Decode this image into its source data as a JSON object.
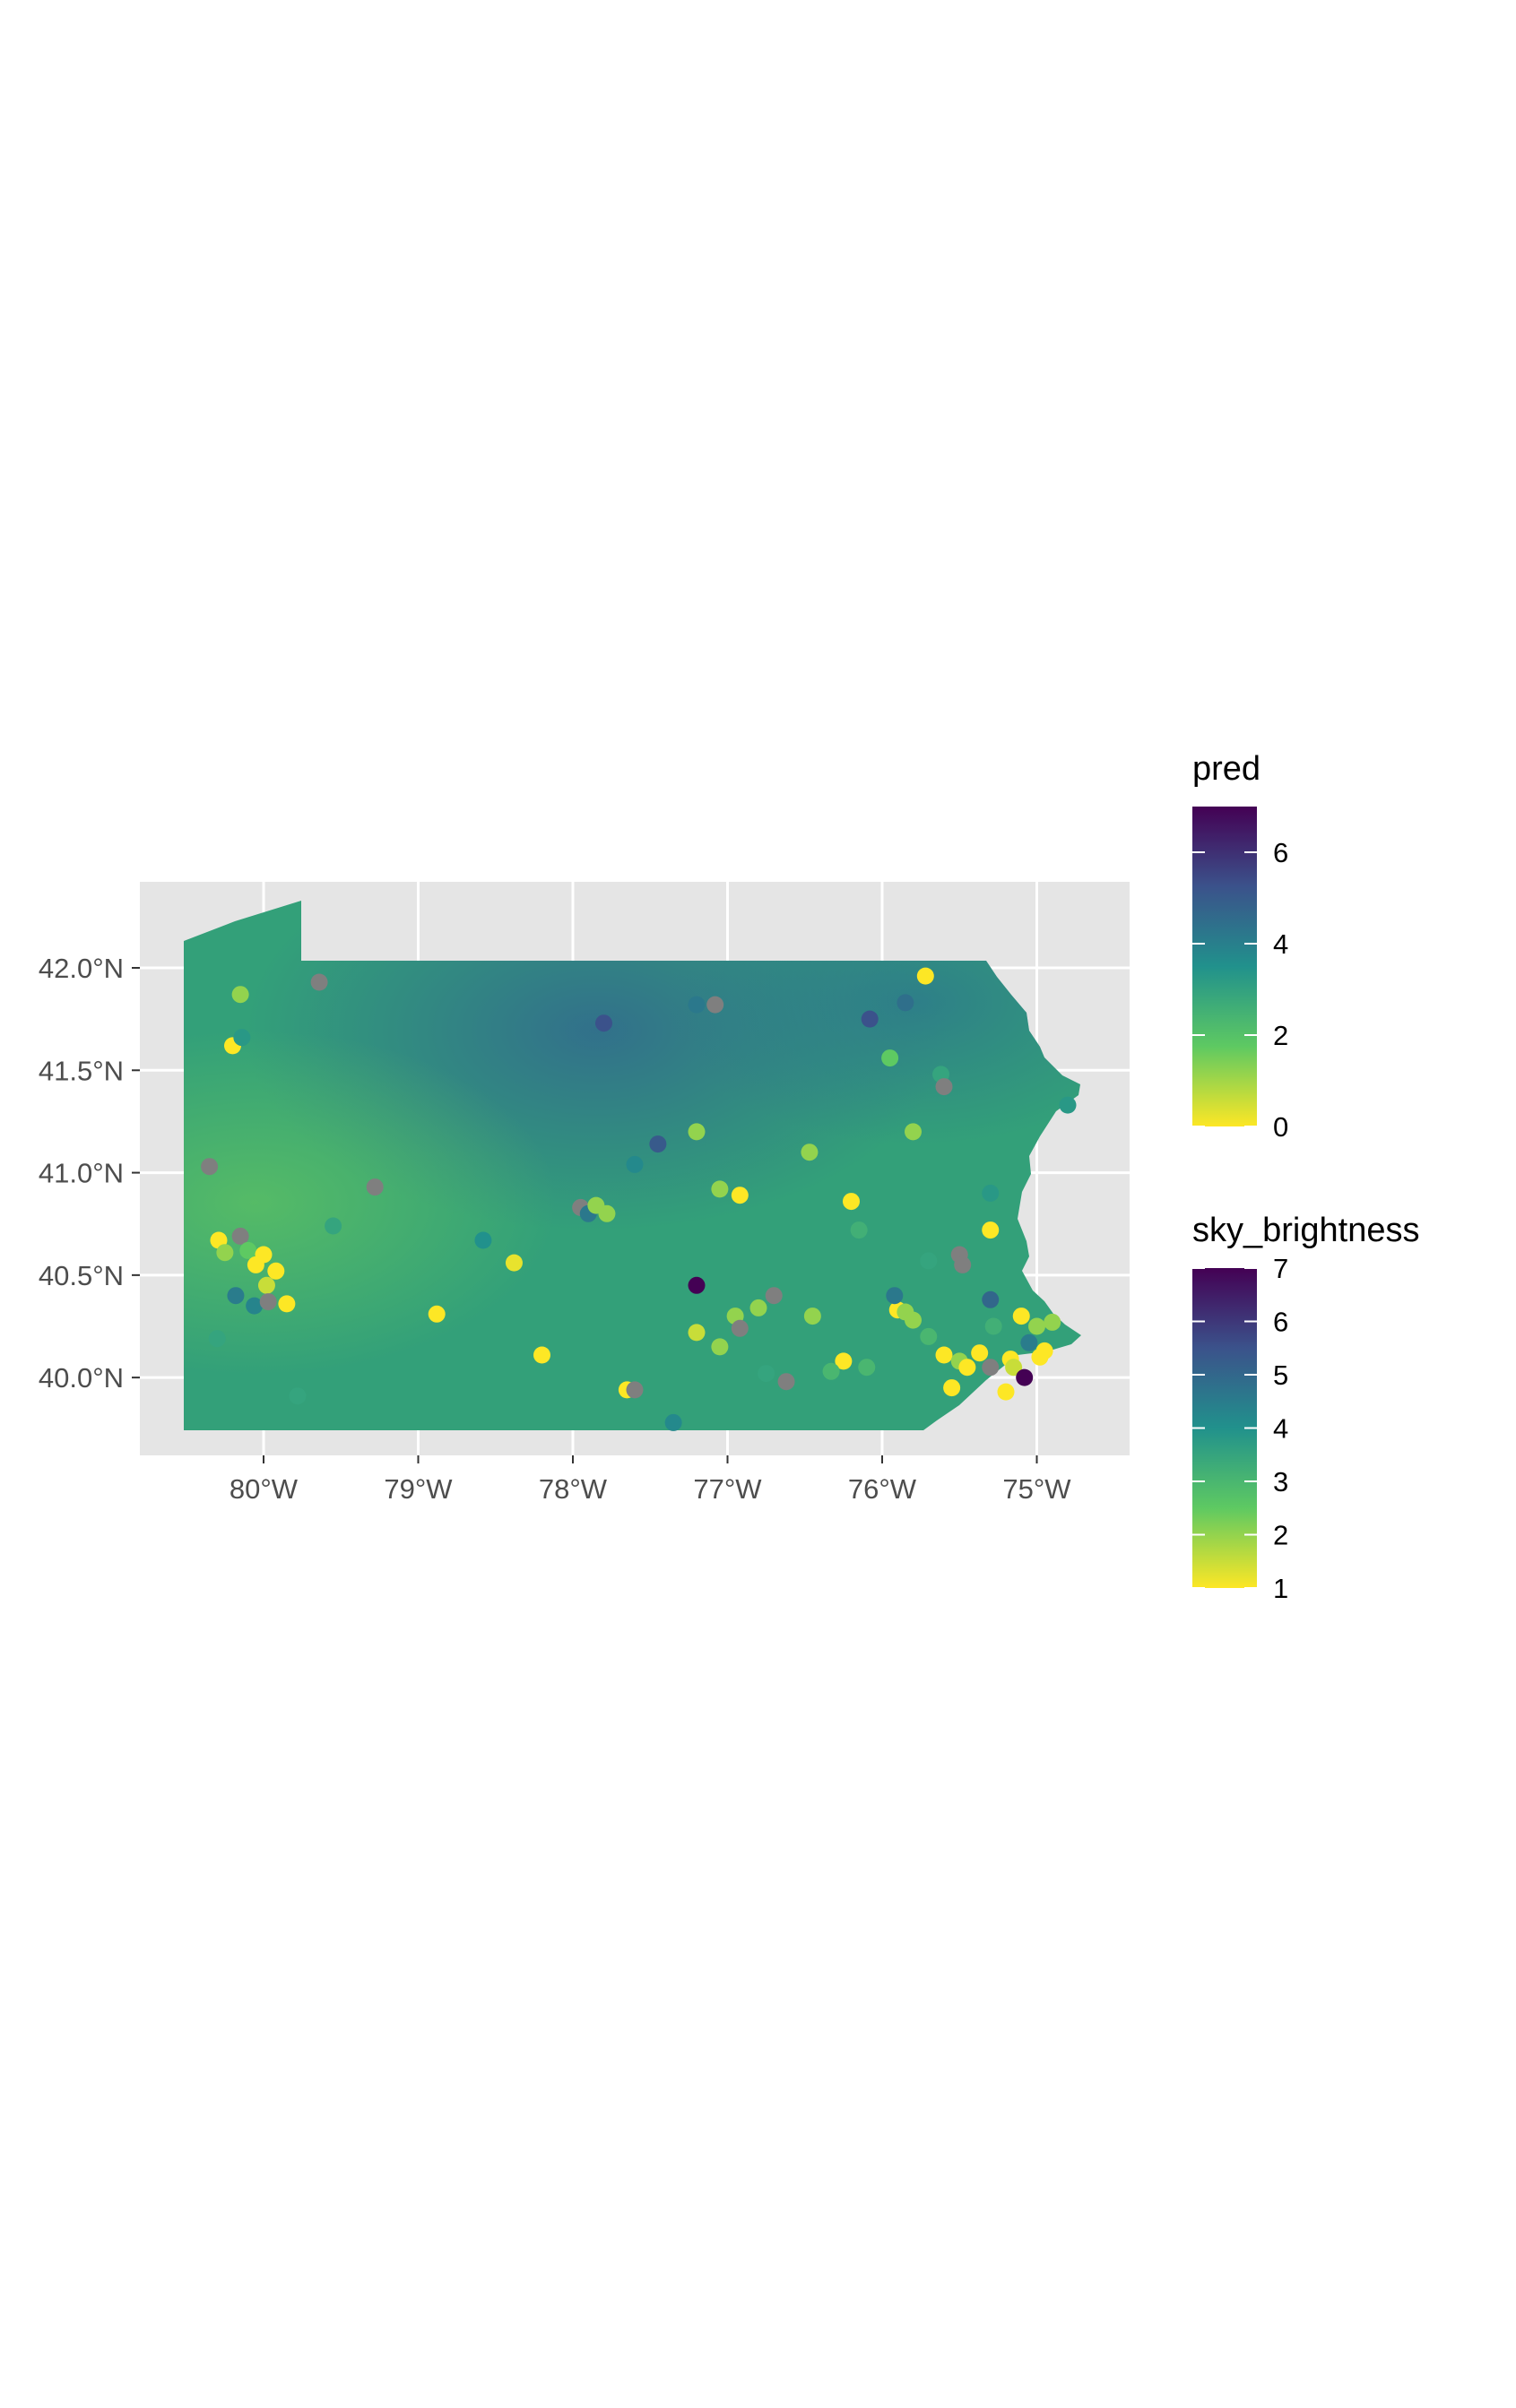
{
  "map": {
    "x_axis": {
      "ticks": [
        -80,
        -79,
        -78,
        -77,
        -76,
        -75
      ],
      "tick_labels": [
        "80°W",
        "79°W",
        "78°W",
        "77°W",
        "76°W",
        "75°W"
      ],
      "range": [
        -80.8,
        -74.4
      ]
    },
    "y_axis": {
      "ticks": [
        40.0,
        40.5,
        41.0,
        41.5,
        42.0
      ],
      "tick_labels": [
        "40.0°N",
        "40.5°N",
        "41.0°N",
        "41.5°N",
        "42.0°N"
      ],
      "range": [
        39.62,
        42.42
      ]
    },
    "panel_background": "#e5e5e5",
    "grid": true,
    "region_color": "#32a07a"
  },
  "legends": {
    "pred": {
      "title": "pred",
      "ticks": [
        "6",
        "4",
        "2",
        "0"
      ],
      "range": [
        0,
        7
      ]
    },
    "sky": {
      "title": "sky_brightness",
      "ticks": [
        "7",
        "6",
        "5",
        "4",
        "3",
        "2",
        "1"
      ],
      "range": [
        1,
        7
      ]
    },
    "palette": [
      "#fde725",
      "#5ec962",
      "#21918c",
      "#3b528b",
      "#440154"
    ]
  },
  "chart_data": {
    "type": "scatter",
    "xlabel": "",
    "ylabel": "",
    "xlim": [
      -80.8,
      -74.4
    ],
    "ylim": [
      39.62,
      42.42
    ],
    "note_na_color": "#7f7f7f",
    "points": [
      [
        -80.15,
        41.87,
        2.0
      ],
      [
        -80.2,
        41.62,
        1.0
      ],
      [
        -80.14,
        41.66,
        3.8
      ],
      [
        -79.64,
        41.93,
        null
      ],
      [
        -80.35,
        41.03,
        null
      ],
      [
        -80.29,
        40.67,
        1.0
      ],
      [
        -80.25,
        40.61,
        2.0
      ],
      [
        -80.15,
        40.69,
        null
      ],
      [
        -80.1,
        40.62,
        2.5
      ],
      [
        -80.05,
        40.55,
        1.0
      ],
      [
        -80.0,
        40.6,
        1.0
      ],
      [
        -79.98,
        40.45,
        1.5
      ],
      [
        -79.92,
        40.52,
        1.0
      ],
      [
        -80.18,
        40.4,
        4.5
      ],
      [
        -80.06,
        40.35,
        4.3
      ],
      [
        -79.97,
        40.37,
        null
      ],
      [
        -79.85,
        40.36,
        1.0
      ],
      [
        -80.3,
        40.19,
        3.5
      ],
      [
        -79.78,
        39.91,
        3.5
      ],
      [
        -79.55,
        40.74,
        3.5
      ],
      [
        -79.28,
        40.93,
        null
      ],
      [
        -78.88,
        40.31,
        1.0
      ],
      [
        -78.58,
        40.67,
        4.0
      ],
      [
        -78.38,
        40.56,
        1.2
      ],
      [
        -78.2,
        40.11,
        1.0
      ],
      [
        -77.95,
        40.83,
        null
      ],
      [
        -77.9,
        40.8,
        4.6
      ],
      [
        -77.85,
        40.84,
        2.0
      ],
      [
        -77.78,
        40.8,
        2.0
      ],
      [
        -77.8,
        41.73,
        5.5
      ],
      [
        -77.6,
        41.04,
        4.2
      ],
      [
        -77.45,
        41.14,
        5.3
      ],
      [
        -77.65,
        39.94,
        1.0
      ],
      [
        -77.6,
        39.94,
        null
      ],
      [
        -77.35,
        39.78,
        4.2
      ],
      [
        -77.2,
        41.82,
        4.6
      ],
      [
        -77.08,
        41.82,
        null
      ],
      [
        -77.2,
        41.2,
        2.0
      ],
      [
        -77.05,
        40.92,
        2.0
      ],
      [
        -76.92,
        40.89,
        1.0
      ],
      [
        -77.2,
        40.45,
        7.0
      ],
      [
        -77.2,
        40.22,
        1.5
      ],
      [
        -77.05,
        40.15,
        2.0
      ],
      [
        -76.95,
        40.3,
        2.0
      ],
      [
        -76.8,
        40.34,
        2.0
      ],
      [
        -76.92,
        40.24,
        null
      ],
      [
        -76.7,
        40.4,
        null
      ],
      [
        -76.75,
        40.02,
        3.5
      ],
      [
        -76.62,
        39.98,
        null
      ],
      [
        -76.45,
        40.3,
        2.0
      ],
      [
        -76.47,
        41.1,
        2.0
      ],
      [
        -76.2,
        40.86,
        1.0
      ],
      [
        -76.15,
        40.72,
        3.2
      ],
      [
        -76.08,
        41.75,
        5.5
      ],
      [
        -75.85,
        41.83,
        4.8
      ],
      [
        -75.72,
        41.96,
        1.0
      ],
      [
        -75.95,
        41.56,
        2.5
      ],
      [
        -75.8,
        41.2,
        2.0
      ],
      [
        -75.62,
        41.48,
        3.5
      ],
      [
        -75.6,
        41.42,
        null
      ],
      [
        -75.3,
        40.9,
        3.8
      ],
      [
        -75.3,
        40.72,
        1.0
      ],
      [
        -75.5,
        40.6,
        null
      ],
      [
        -75.48,
        40.55,
        null
      ],
      [
        -75.7,
        40.57,
        3.5
      ],
      [
        -75.9,
        40.33,
        1.0
      ],
      [
        -75.92,
        40.4,
        4.6
      ],
      [
        -75.85,
        40.32,
        2.0
      ],
      [
        -75.8,
        40.28,
        2.0
      ],
      [
        -75.7,
        40.2,
        3.0
      ],
      [
        -75.6,
        40.11,
        1.0
      ],
      [
        -75.5,
        40.08,
        2.0
      ],
      [
        -75.45,
        40.05,
        1.0
      ],
      [
        -75.37,
        40.12,
        1.0
      ],
      [
        -75.3,
        40.38,
        5.0
      ],
      [
        -75.28,
        40.25,
        3.2
      ],
      [
        -75.2,
        39.93,
        1.0
      ],
      [
        -75.17,
        40.09,
        1.0
      ],
      [
        -75.15,
        40.05,
        1.5
      ],
      [
        -75.1,
        40.3,
        1.0
      ],
      [
        -75.08,
        40.0,
        7.0
      ],
      [
        -75.05,
        40.17,
        4.5
      ],
      [
        -75.0,
        40.25,
        2.0
      ],
      [
        -74.95,
        40.13,
        1.0
      ],
      [
        -74.98,
        40.1,
        1.0
      ],
      [
        -74.9,
        40.27,
        2.0
      ],
      [
        -75.3,
        40.05,
        null
      ],
      [
        -75.55,
        39.95,
        1.0
      ],
      [
        -76.1,
        40.05,
        3.0
      ],
      [
        -76.25,
        40.08,
        1.0
      ],
      [
        -76.33,
        40.03,
        3.0
      ],
      [
        -74.8,
        41.33,
        3.8
      ]
    ]
  }
}
